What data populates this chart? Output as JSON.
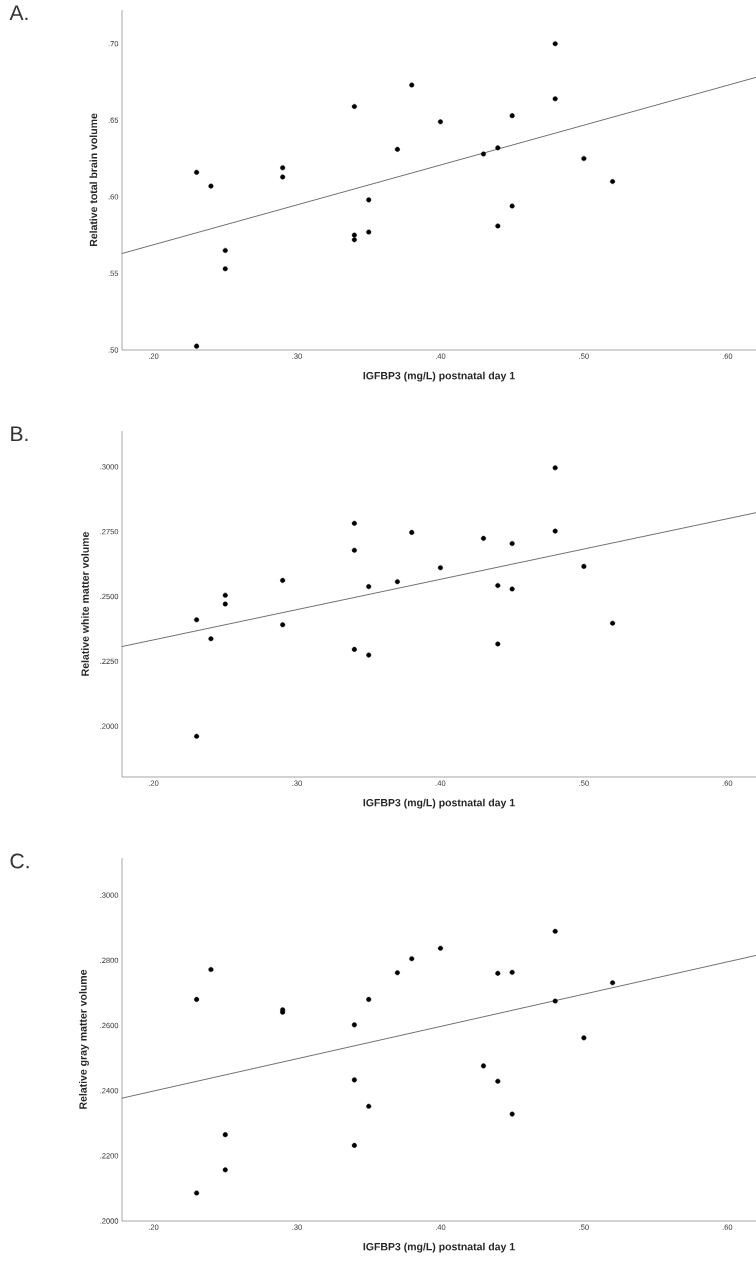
{
  "chart_data": [
    {
      "type": "scatter",
      "title": "A.",
      "xlabel": "IGFBP3 (mg/L) postnatal day 1",
      "ylabel": "Relative total brain volume",
      "xlim": [
        0.178,
        0.62
      ],
      "ylim": [
        0.5,
        0.722
      ],
      "xticks": [
        {
          "value": 0.2,
          "label": ".20"
        },
        {
          "value": 0.3,
          "label": ".30"
        },
        {
          "value": 0.4,
          "label": ".40"
        },
        {
          "value": 0.5,
          "label": ".50"
        },
        {
          "value": 0.6,
          "label": ".60"
        }
      ],
      "yticks": [
        {
          "value": 0.5,
          "label": ".50"
        },
        {
          "value": 0.55,
          "label": ".55"
        },
        {
          "value": 0.6,
          "label": ".60"
        },
        {
          "value": 0.65,
          "label": ".65"
        },
        {
          "value": 0.7,
          "label": ".70"
        }
      ],
      "series": [
        {
          "color": "#000000",
          "marker": "circle",
          "x": [
            0.23,
            0.23,
            0.24,
            0.25,
            0.25,
            0.29,
            0.29,
            0.34,
            0.34,
            0.34,
            0.35,
            0.35,
            0.37,
            0.38,
            0.4,
            0.43,
            0.44,
            0.44,
            0.45,
            0.45,
            0.48,
            0.48,
            0.5,
            0.52
          ],
          "values": [
            0.616,
            0.5025,
            0.607,
            0.565,
            0.553,
            0.619,
            0.613,
            0.659,
            0.575,
            0.572,
            0.598,
            0.577,
            0.631,
            0.673,
            0.649,
            0.628,
            0.632,
            0.581,
            0.653,
            0.594,
            0.7,
            0.664,
            0.625,
            0.61
          ]
        },
        {
          "type": "line",
          "color": "#333333",
          "marker": "none",
          "x": [
            0.178,
            0.62
          ],
          "values": [
            0.563,
            0.678
          ]
        }
      ]
    },
    {
      "type": "scatter",
      "title": "B.",
      "xlabel": "IGFBP3 (mg/L) postnatal day 1",
      "ylabel": "Relative white matter volume",
      "xlim": [
        0.178,
        0.62
      ],
      "ylim": [
        0.1804,
        0.3138
      ],
      "xticks": [
        {
          "value": 0.2,
          "label": ".20"
        },
        {
          "value": 0.3,
          "label": ".30"
        },
        {
          "value": 0.4,
          "label": ".40"
        },
        {
          "value": 0.5,
          "label": ".50"
        },
        {
          "value": 0.6,
          "label": ".60"
        }
      ],
      "yticks": [
        {
          "value": 0.2,
          "label": ".2000"
        },
        {
          "value": 0.225,
          "label": ".2250"
        },
        {
          "value": 0.25,
          "label": ".2500"
        },
        {
          "value": 0.275,
          "label": ".2750"
        },
        {
          "value": 0.3,
          "label": ".3000"
        }
      ],
      "series": [
        {
          "color": "#000000",
          "marker": "circle",
          "x": [
            0.23,
            0.23,
            0.24,
            0.25,
            0.25,
            0.29,
            0.29,
            0.34,
            0.34,
            0.34,
            0.35,
            0.35,
            0.37,
            0.38,
            0.4,
            0.43,
            0.44,
            0.44,
            0.45,
            0.45,
            0.48,
            0.48,
            0.5,
            0.52
          ],
          "values": [
            0.241,
            0.1961,
            0.2337,
            0.2505,
            0.2471,
            0.2562,
            0.2391,
            0.2782,
            0.2678,
            0.2296,
            0.2538,
            0.2274,
            0.2557,
            0.2747,
            0.2611,
            0.2724,
            0.2542,
            0.2317,
            0.2704,
            0.2529,
            0.2996,
            0.2752,
            0.2616,
            0.2397
          ]
        },
        {
          "type": "line",
          "color": "#333333",
          "marker": "none",
          "x": [
            0.178,
            0.62
          ],
          "values": [
            0.2307,
            0.2823
          ]
        }
      ]
    },
    {
      "type": "scatter",
      "title": "C.",
      "xlabel": "IGFBP3 (mg/L) postnatal day 1",
      "ylabel": "Relative gray matter volume",
      "xlim": [
        0.178,
        0.62
      ],
      "ylim": [
        0.2,
        0.3114
      ],
      "xticks": [
        {
          "value": 0.2,
          "label": ".20"
        },
        {
          "value": 0.3,
          "label": ".30"
        },
        {
          "value": 0.4,
          "label": ".40"
        },
        {
          "value": 0.5,
          "label": ".50"
        },
        {
          "value": 0.6,
          "label": ".60"
        }
      ],
      "yticks": [
        {
          "value": 0.2,
          "label": ".2000"
        },
        {
          "value": 0.22,
          "label": ".2200"
        },
        {
          "value": 0.24,
          "label": ".2400"
        },
        {
          "value": 0.26,
          "label": ".2600"
        },
        {
          "value": 0.28,
          "label": ".2800"
        },
        {
          "value": 0.3,
          "label": ".3000"
        }
      ],
      "series": [
        {
          "color": "#000000",
          "marker": "circle",
          "x": [
            0.23,
            0.23,
            0.24,
            0.25,
            0.25,
            0.29,
            0.29,
            0.34,
            0.34,
            0.34,
            0.35,
            0.35,
            0.37,
            0.38,
            0.4,
            0.43,
            0.44,
            0.44,
            0.45,
            0.45,
            0.48,
            0.48,
            0.5,
            0.52
          ],
          "values": [
            0.268,
            0.2086,
            0.2772,
            0.2265,
            0.2157,
            0.2648,
            0.2641,
            0.2602,
            0.2433,
            0.2232,
            0.268,
            0.2352,
            0.2762,
            0.2805,
            0.2837,
            0.2476,
            0.276,
            0.2429,
            0.2763,
            0.2328,
            0.2889,
            0.2675,
            0.2562,
            0.2731
          ]
        },
        {
          "type": "line",
          "color": "#333333",
          "marker": "none",
          "x": [
            0.178,
            0.62
          ],
          "values": [
            0.2377,
            0.2815
          ]
        }
      ]
    }
  ]
}
